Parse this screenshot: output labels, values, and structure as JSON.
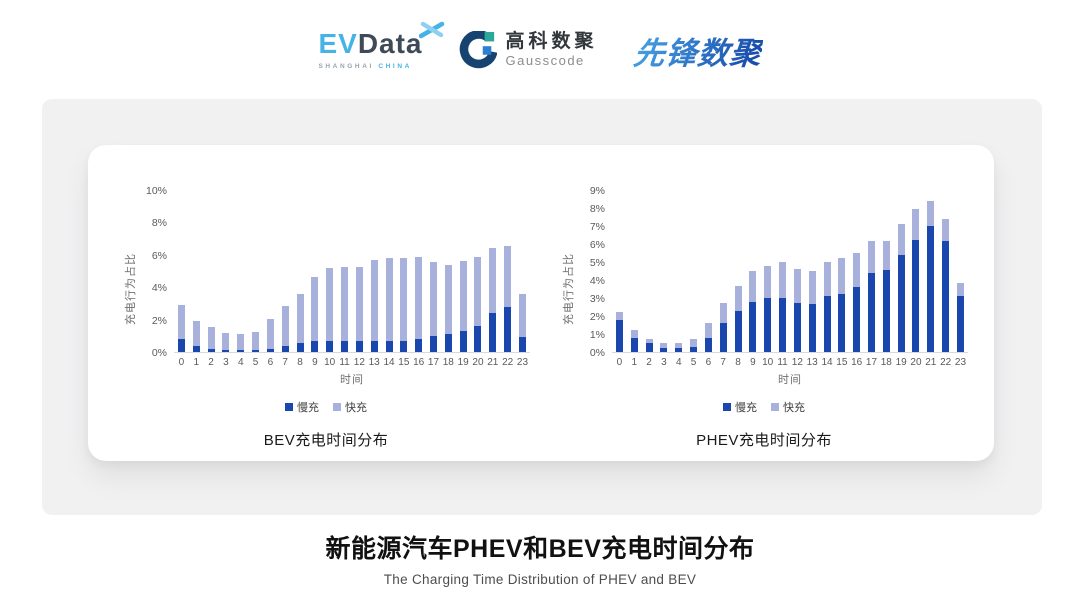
{
  "header": {
    "evdata": {
      "ev": "EV",
      "data": "Data",
      "sub_left": "SHANGHAI",
      "sub_right": "CHINA"
    },
    "gausscode": {
      "cn": "高科数聚",
      "en": "Gausscode"
    },
    "xianfeng": {
      "text": "先锋数聚"
    }
  },
  "colors": {
    "slow_charge": "#1a47ad",
    "fast_charge": "#a7b1dc",
    "evdata_blue": "#45b3e6",
    "evdata_slate": "#3e4a57",
    "gauss_navy": "#16436f",
    "gauss_teal": "#2ca89a",
    "gauss_blue": "#2e7fd1",
    "band_gray": "#f1f1f2"
  },
  "chart_data": [
    {
      "type": "bar",
      "stacked": true,
      "title": "BEV充电时间分布",
      "xlabel": "时间",
      "ylabel": "充电行为占比",
      "ylim": [
        0,
        10
      ],
      "ytick_step": 2,
      "ytick_suffix": "%",
      "grid": false,
      "legend_position": "bottom",
      "categories": [
        0,
        1,
        2,
        3,
        4,
        5,
        6,
        7,
        8,
        9,
        10,
        11,
        12,
        13,
        14,
        15,
        16,
        17,
        18,
        19,
        20,
        21,
        22,
        23
      ],
      "series": [
        {
          "name": "慢充",
          "color": "#1a47ad",
          "values": [
            0.8,
            0.4,
            0.2,
            0.15,
            0.1,
            0.1,
            0.2,
            0.4,
            0.55,
            0.7,
            0.65,
            0.7,
            0.65,
            0.65,
            0.7,
            0.7,
            0.8,
            1.0,
            1.1,
            1.3,
            1.6,
            2.4,
            2.75,
            0.95
          ]
        },
        {
          "name": "快充",
          "color": "#a7b1dc",
          "values": [
            2.1,
            1.5,
            1.35,
            1.05,
            1.0,
            1.15,
            1.85,
            2.45,
            3.05,
            3.95,
            4.55,
            4.55,
            4.6,
            5.0,
            5.1,
            5.1,
            5.05,
            4.55,
            4.25,
            4.3,
            4.25,
            4.0,
            3.8,
            2.65
          ]
        }
      ]
    },
    {
      "type": "bar",
      "stacked": true,
      "title": "PHEV充电时间分布",
      "xlabel": "时间",
      "ylabel": "充电行为占比",
      "ylim": [
        0,
        9
      ],
      "ytick_step": 1,
      "ytick_suffix": "%",
      "grid": false,
      "legend_position": "bottom",
      "categories": [
        0,
        1,
        2,
        3,
        4,
        5,
        6,
        7,
        8,
        9,
        10,
        11,
        12,
        13,
        14,
        15,
        16,
        17,
        18,
        19,
        20,
        21,
        22,
        23
      ],
      "series": [
        {
          "name": "慢充",
          "color": "#1a47ad",
          "values": [
            1.8,
            0.8,
            0.5,
            0.25,
            0.25,
            0.3,
            0.8,
            1.6,
            2.3,
            2.8,
            3.0,
            3.0,
            2.75,
            2.65,
            3.1,
            3.25,
            3.6,
            4.4,
            4.55,
            5.4,
            6.25,
            7.0,
            6.15,
            3.1
          ]
        },
        {
          "name": "快充",
          "color": "#a7b1dc",
          "values": [
            0.45,
            0.4,
            0.25,
            0.25,
            0.25,
            0.4,
            0.8,
            1.15,
            1.35,
            1.7,
            1.8,
            2.0,
            1.85,
            1.85,
            1.9,
            2.0,
            1.9,
            1.75,
            1.6,
            1.7,
            1.7,
            1.4,
            1.25,
            0.75
          ]
        }
      ]
    }
  ],
  "footer": {
    "title": "新能源汽车PHEV和BEV充电时间分布",
    "subtitle": "The Charging Time Distribution of PHEV and BEV"
  }
}
